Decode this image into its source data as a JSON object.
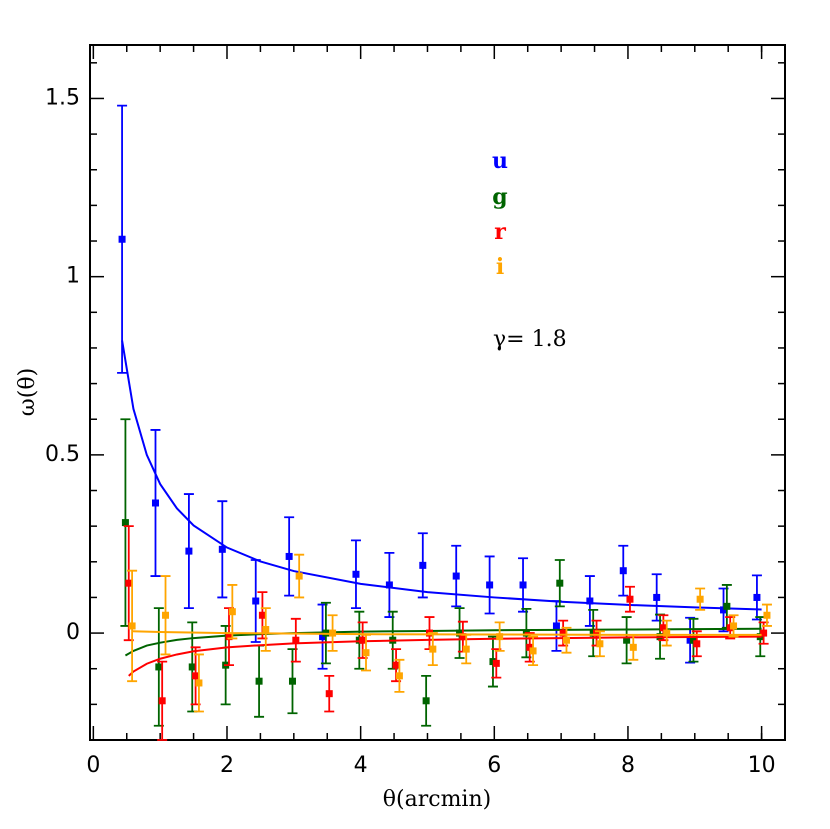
{
  "chart_data": {
    "type": "errorbar",
    "xlabel": "θ(arcmin)",
    "ylabel": "ω(θ)",
    "annotation": "γ=  1.8",
    "xlim": [
      -0.05,
      10.35
    ],
    "ylim": [
      -0.3,
      1.65
    ],
    "xticks": [
      0,
      2,
      4,
      6,
      8,
      10
    ],
    "yticks": [
      0,
      0.5,
      1,
      1.5
    ],
    "xminorticks": [
      0.5,
      1,
      1.5,
      2.5,
      3,
      3.5,
      4.5,
      5,
      5.5,
      6.5,
      7,
      7.5,
      8.5,
      9,
      9.5,
      10
    ],
    "yminorticks": [
      -0.2,
      -0.1,
      0.1,
      0.2,
      0.3,
      0.4,
      0.6,
      0.7,
      0.8,
      0.9,
      1.1,
      1.2,
      1.3,
      1.4,
      1.6
    ],
    "series": [
      {
        "name": "u",
        "color": "#0000ff",
        "x": [
          0.43,
          0.93,
          1.43,
          1.93,
          2.43,
          2.93,
          3.43,
          3.93,
          4.43,
          4.93,
          5.43,
          5.93,
          6.43,
          6.93,
          7.43,
          7.93,
          8.43,
          8.93,
          9.43,
          9.93
        ],
        "values": [
          1.105,
          0.365,
          0.23,
          0.235,
          0.09,
          0.215,
          -0.01,
          0.165,
          0.135,
          0.19,
          0.16,
          0.135,
          0.135,
          0.02,
          0.09,
          0.175,
          0.1,
          -0.02,
          0.065,
          0.1
        ],
        "errors": [
          0.375,
          0.205,
          0.16,
          0.135,
          0.115,
          0.11,
          0.09,
          0.095,
          0.09,
          0.09,
          0.085,
          0.08,
          0.075,
          0.07,
          0.07,
          0.07,
          0.065,
          0.063,
          0.06,
          0.062
        ],
        "fit_x": [
          0.43,
          0.6,
          0.8,
          1,
          1.25,
          1.5,
          2,
          2.5,
          3,
          4,
          5,
          6,
          7,
          8,
          9,
          10
        ],
        "fit_values": [
          0.821,
          0.629,
          0.5,
          0.418,
          0.35,
          0.302,
          0.24,
          0.201,
          0.174,
          0.138,
          0.115,
          0.1,
          0.088,
          0.079,
          0.072,
          0.066
        ]
      },
      {
        "name": "g",
        "color": "#006400",
        "x": [
          0.48,
          0.98,
          1.48,
          1.98,
          2.48,
          2.98,
          3.48,
          3.98,
          4.48,
          4.98,
          5.48,
          5.98,
          6.48,
          6.98,
          7.48,
          7.98,
          8.48,
          8.98,
          9.48,
          9.98
        ],
        "values": [
          0.31,
          -0.095,
          -0.095,
          -0.09,
          -0.135,
          -0.135,
          0.0,
          -0.02,
          -0.02,
          -0.19,
          0.0,
          -0.08,
          0.0,
          0.14,
          0.0,
          -0.02,
          -0.01,
          -0.02,
          0.075,
          -0.01
        ],
        "errors": [
          0.29,
          0.165,
          0.125,
          0.11,
          0.1,
          0.09,
          0.085,
          0.08,
          0.08,
          0.07,
          0.07,
          0.07,
          0.068,
          0.065,
          0.065,
          0.065,
          0.062,
          0.06,
          0.06,
          0.055
        ],
        "fit_x": [
          0.48,
          0.6,
          0.8,
          1,
          1.25,
          1.5,
          2,
          2.5,
          3,
          4,
          5,
          6,
          7,
          8,
          9,
          10
        ],
        "fit_values": [
          -0.063,
          -0.05,
          -0.035,
          -0.027,
          -0.019,
          -0.014,
          -0.007,
          -0.003,
          0.0,
          0.004,
          0.006,
          0.008,
          0.009,
          0.01,
          0.011,
          0.012
        ]
      },
      {
        "name": "r",
        "color": "#ff0000",
        "x": [
          0.53,
          1.03,
          1.53,
          2.03,
          2.53,
          3.03,
          3.53,
          4.03,
          4.53,
          5.03,
          5.53,
          6.03,
          6.53,
          7.03,
          7.53,
          8.03,
          8.53,
          9.03,
          9.53,
          10.03
        ],
        "values": [
          0.14,
          -0.19,
          -0.12,
          -0.01,
          0.05,
          -0.02,
          -0.17,
          -0.02,
          -0.09,
          0.0,
          -0.01,
          -0.085,
          -0.04,
          0.0,
          0.0,
          0.095,
          0.015,
          -0.03,
          0.015,
          0.0
        ],
        "errors": [
          0.16,
          0.11,
          0.08,
          0.08,
          0.065,
          0.06,
          0.05,
          0.05,
          0.045,
          0.045,
          0.042,
          0.04,
          0.04,
          0.035,
          0.035,
          0.035,
          0.035,
          0.035,
          0.03,
          0.03
        ],
        "fit_x": [
          0.53,
          0.6,
          0.8,
          1,
          1.25,
          1.5,
          2,
          2.5,
          3,
          4,
          5,
          6,
          7,
          8,
          9,
          10
        ],
        "fit_values": [
          -0.12,
          -0.108,
          -0.086,
          -0.072,
          -0.06,
          -0.051,
          -0.04,
          -0.034,
          -0.029,
          -0.023,
          -0.019,
          -0.016,
          -0.014,
          -0.012,
          -0.011,
          -0.01
        ]
      },
      {
        "name": "i",
        "color": "#ffa500",
        "x": [
          0.58,
          1.08,
          1.58,
          2.08,
          2.58,
          3.08,
          3.58,
          4.08,
          4.58,
          5.08,
          5.58,
          6.08,
          6.58,
          7.08,
          7.58,
          8.08,
          8.58,
          9.08,
          9.58,
          10.08
        ],
        "values": [
          0.02,
          0.05,
          -0.14,
          0.06,
          0.01,
          0.16,
          0.0,
          -0.055,
          -0.12,
          -0.045,
          -0.045,
          -0.01,
          -0.05,
          -0.02,
          -0.03,
          -0.04,
          0.0,
          0.095,
          0.02,
          0.05
        ],
        "errors": [
          0.155,
          0.11,
          0.08,
          0.075,
          0.06,
          0.06,
          0.05,
          0.05,
          0.045,
          0.045,
          0.04,
          0.04,
          0.04,
          0.035,
          0.035,
          0.035,
          0.035,
          0.03,
          0.03,
          0.03
        ],
        "fit_x": [
          0.58,
          1,
          2,
          4,
          6,
          8,
          10
        ],
        "fit_values": [
          0.005,
          0.003,
          0.0,
          -0.003,
          -0.004,
          -0.005,
          -0.005
        ]
      }
    ]
  }
}
